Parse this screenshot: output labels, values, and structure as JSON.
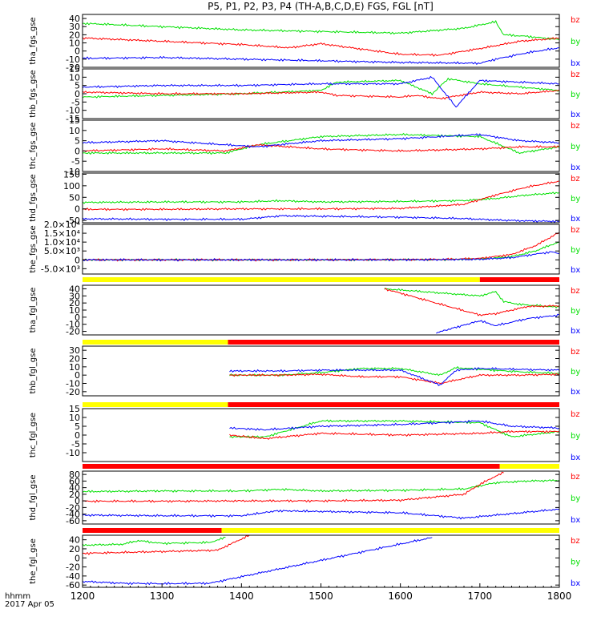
{
  "figure": {
    "title": "P5, P1, P2, P3, P4 (TH-A,B,C,D,E) FGS, FGL [nT]",
    "time_label": "hhmm",
    "date_label": "2017 Apr 05",
    "x_ticks": [
      "1200",
      "1300",
      "1400",
      "1500",
      "1600",
      "1700",
      "1800"
    ],
    "colors": {
      "bx": "#0000ff",
      "by": "#00e000",
      "bz": "#ff0000",
      "bar_yellow": "#ffff00",
      "bar_red": "#ff0000"
    }
  },
  "chart_data": [
    {
      "type": "line",
      "ylabel": "tha_fgs_gse",
      "ylim": [
        -20,
        45
      ],
      "y_ticks": [
        "40",
        "30",
        "20",
        "10",
        "0",
        "-10",
        "-20"
      ],
      "legend": [
        "bz",
        "by",
        "bx"
      ],
      "series": [
        {
          "name": "bz",
          "x": [
            1200,
            1300,
            1400,
            1460,
            1500,
            1600,
            1650,
            1700,
            1750,
            1800
          ],
          "values": [
            16,
            12,
            8,
            4,
            9,
            -4,
            -5,
            3,
            12,
            16
          ]
        },
        {
          "name": "by",
          "x": [
            1200,
            1300,
            1400,
            1500,
            1600,
            1680,
            1720,
            1730,
            1760,
            1800
          ],
          "values": [
            34,
            30,
            26,
            24,
            22,
            28,
            36,
            20,
            18,
            14
          ]
        },
        {
          "name": "bx",
          "x": [
            1200,
            1300,
            1400,
            1500,
            1600,
            1700,
            1720,
            1760,
            1800
          ],
          "values": [
            -9,
            -8,
            -10,
            -12,
            -14,
            -15,
            -10,
            -2,
            4
          ]
        }
      ]
    },
    {
      "type": "line",
      "ylabel": "thb_fgs_gse",
      "ylim": [
        -15,
        15
      ],
      "y_ticks": [
        "15",
        "10",
        "5",
        "0",
        "-5",
        "-10",
        "-15"
      ],
      "legend": [
        "bz",
        "by",
        "bx"
      ],
      "series": [
        {
          "name": "bz",
          "x": [
            1200,
            1300,
            1400,
            1500,
            1520,
            1600,
            1620,
            1650,
            1700,
            1750,
            1800
          ],
          "values": [
            1,
            0,
            0,
            1,
            -1,
            -2,
            -1,
            -3,
            1,
            0,
            2
          ]
        },
        {
          "name": "by",
          "x": [
            1200,
            1300,
            1400,
            1500,
            1520,
            1600,
            1640,
            1660,
            1700,
            1750,
            1800
          ],
          "values": [
            -2,
            -1,
            0,
            2,
            7,
            8,
            0,
            9,
            6,
            4,
            2
          ]
        },
        {
          "name": "bx",
          "x": [
            1200,
            1300,
            1400,
            1500,
            1600,
            1640,
            1670,
            1700,
            1750,
            1800
          ],
          "values": [
            4,
            5,
            5,
            6,
            6,
            10,
            -8,
            8,
            7,
            6
          ]
        }
      ]
    },
    {
      "type": "line",
      "ylabel": "thc_fgs_gse",
      "ylim": [
        -10,
        15
      ],
      "y_ticks": [
        "15",
        "10",
        "5",
        "0",
        "-5",
        "-10"
      ],
      "legend": [
        "bz",
        "by",
        "bx"
      ],
      "series": [
        {
          "name": "bz",
          "x": [
            1200,
            1300,
            1380,
            1420,
            1500,
            1600,
            1700,
            1750,
            1800
          ],
          "values": [
            0,
            1,
            0,
            3,
            1,
            0,
            1,
            2,
            2
          ]
        },
        {
          "name": "by",
          "x": [
            1200,
            1300,
            1380,
            1420,
            1500,
            1600,
            1700,
            1750,
            1800
          ],
          "values": [
            -1,
            -1,
            -1,
            3,
            7,
            8,
            7,
            -1,
            2
          ]
        },
        {
          "name": "bx",
          "x": [
            1200,
            1300,
            1380,
            1420,
            1500,
            1600,
            1700,
            1750,
            1800
          ],
          "values": [
            4,
            5,
            3,
            2,
            5,
            6,
            8,
            5,
            4
          ]
        }
      ]
    },
    {
      "type": "line",
      "ylabel": "thd_fgs_gse",
      "ylim": [
        -60,
        155
      ],
      "y_ticks": [
        "150",
        "100",
        "50",
        "0",
        "-50"
      ],
      "legend": [
        "bz",
        "by",
        "bx"
      ],
      "series": [
        {
          "name": "bz",
          "x": [
            1200,
            1300,
            1400,
            1500,
            1600,
            1680,
            1720,
            1760,
            1800
          ],
          "values": [
            -2,
            -2,
            0,
            0,
            2,
            20,
            60,
            95,
            120
          ]
        },
        {
          "name": "by",
          "x": [
            1200,
            1300,
            1400,
            1450,
            1500,
            1600,
            1680,
            1720,
            1760,
            1800
          ],
          "values": [
            28,
            30,
            30,
            35,
            30,
            32,
            36,
            45,
            60,
            70
          ]
        },
        {
          "name": "bx",
          "x": [
            1200,
            1300,
            1400,
            1450,
            1500,
            1600,
            1680,
            1720,
            1760,
            1800
          ],
          "values": [
            -43,
            -45,
            -45,
            -30,
            -32,
            -36,
            -42,
            -48,
            -52,
            -54
          ]
        }
      ]
    },
    {
      "type": "line",
      "ylabel": "the_fgs_gse",
      "ylim": [
        -8000,
        20000
      ],
      "y_ticks": [
        "2.0×10⁴",
        "1.5×10⁴",
        "1.0×10⁴",
        "5.0×10³",
        "0",
        "-5.0×10³"
      ],
      "legend": [
        "bz",
        "by",
        "bx"
      ],
      "series": [
        {
          "name": "bz",
          "x": [
            1200,
            1500,
            1650,
            1700,
            1740,
            1770,
            1790,
            1800
          ],
          "values": [
            0,
            0,
            200,
            800,
            3000,
            8000,
            13000,
            15500
          ]
        },
        {
          "name": "by",
          "x": [
            1200,
            1500,
            1650,
            1700,
            1740,
            1770,
            1790,
            1800
          ],
          "values": [
            0,
            0,
            100,
            500,
            1800,
            5000,
            8500,
            10000
          ]
        },
        {
          "name": "bx",
          "x": [
            1200,
            1500,
            1650,
            1700,
            1740,
            1770,
            1790,
            1800
          ],
          "values": [
            0,
            0,
            100,
            300,
            1200,
            3200,
            4500,
            3500
          ]
        }
      ]
    },
    {
      "type": "line",
      "ylabel": "tha_fgl_gse",
      "ylim": [
        -25,
        45
      ],
      "y_ticks": [
        "40",
        "30",
        "20",
        "10",
        "0",
        "-10",
        "-20"
      ],
      "legend": [
        "bz",
        "by",
        "bx"
      ],
      "mode_bar": [
        {
          "start": 1200,
          "end": 1700,
          "color": "yellow"
        },
        {
          "start": 1700,
          "end": 1800,
          "color": "red"
        }
      ],
      "series": [
        {
          "name": "bz",
          "x": [
            1580,
            1700,
            1720,
            1740,
            1760,
            1800
          ],
          "values": [
            40,
            3,
            5,
            10,
            15,
            16
          ]
        },
        {
          "name": "by",
          "x": [
            1580,
            1700,
            1720,
            1730,
            1750,
            1800
          ],
          "values": [
            40,
            30,
            36,
            22,
            18,
            14
          ]
        },
        {
          "name": "bx",
          "x": [
            1645,
            1700,
            1720,
            1760,
            1800
          ],
          "values": [
            -22,
            -5,
            -12,
            -2,
            3
          ]
        }
      ]
    },
    {
      "type": "line",
      "ylabel": "thb_fgl_gse",
      "ylim": [
        -25,
        35
      ],
      "y_ticks": [
        "30",
        "20",
        "10",
        "0",
        "-10",
        "-20"
      ],
      "legend": [
        "bz",
        "by",
        "bx"
      ],
      "mode_bar": [
        {
          "start": 1200,
          "end": 1383,
          "color": "yellow"
        },
        {
          "start": 1383,
          "end": 1800,
          "color": "red"
        }
      ],
      "series": [
        {
          "name": "bz",
          "x": [
            1385,
            1450,
            1500,
            1550,
            1600,
            1650,
            1700,
            1750,
            1800
          ],
          "values": [
            0,
            0,
            1,
            -2,
            -2,
            -10,
            0,
            0,
            1
          ]
        },
        {
          "name": "by",
          "x": [
            1385,
            1450,
            1500,
            1550,
            1600,
            1650,
            1670,
            1700,
            1750,
            1800
          ],
          "values": [
            0,
            0,
            3,
            8,
            8,
            0,
            9,
            7,
            4,
            2
          ]
        },
        {
          "name": "bx",
          "x": [
            1385,
            1450,
            1500,
            1550,
            1600,
            1650,
            1670,
            1700,
            1750,
            1800
          ],
          "values": [
            5,
            5,
            6,
            6,
            6,
            -12,
            6,
            8,
            7,
            6
          ]
        }
      ]
    },
    {
      "type": "line",
      "ylabel": "thc_fgl_gse",
      "ylim": [
        -15,
        15
      ],
      "y_ticks": [
        "15",
        "10",
        "5",
        "0",
        "-5",
        "-10"
      ],
      "legend": [
        "bz",
        "by",
        "bx"
      ],
      "mode_bar": [
        {
          "start": 1200,
          "end": 1383,
          "color": "yellow"
        },
        {
          "start": 1383,
          "end": 1800,
          "color": "red"
        }
      ],
      "series": [
        {
          "name": "bz",
          "x": [
            1385,
            1430,
            1500,
            1600,
            1700,
            1740,
            1800
          ],
          "values": [
            0,
            -2,
            1,
            0,
            1,
            2,
            2
          ]
        },
        {
          "name": "by",
          "x": [
            1385,
            1430,
            1500,
            1600,
            1700,
            1740,
            1800
          ],
          "values": [
            -1,
            -1,
            8,
            8,
            7,
            -1,
            2
          ]
        },
        {
          "name": "bx",
          "x": [
            1385,
            1430,
            1500,
            1600,
            1700,
            1740,
            1800
          ],
          "values": [
            4,
            3,
            5,
            6,
            8,
            5,
            4
          ]
        }
      ]
    },
    {
      "type": "line",
      "ylabel": "thd_fgl_gse",
      "ylim": [
        -70,
        90
      ],
      "y_ticks": [
        "80",
        "60",
        "40",
        "20",
        "0",
        "-20",
        "-40",
        "-60"
      ],
      "legend": [
        "bz",
        "by",
        "bx"
      ],
      "mode_bar": [
        {
          "start": 1200,
          "end": 1725,
          "color": "red"
        },
        {
          "start": 1725,
          "end": 1800,
          "color": "yellow"
        }
      ],
      "series": [
        {
          "name": "bz",
          "x": [
            1200,
            1300,
            1400,
            1500,
            1600,
            1680,
            1700,
            1720,
            1730
          ],
          "values": [
            -1,
            -1,
            0,
            0,
            2,
            20,
            50,
            75,
            85
          ]
        },
        {
          "name": "by",
          "x": [
            1200,
            1300,
            1400,
            1450,
            1500,
            1600,
            1680,
            1720,
            1760,
            1800
          ],
          "values": [
            28,
            30,
            30,
            35,
            30,
            32,
            36,
            55,
            60,
            62
          ]
        },
        {
          "name": "bx",
          "x": [
            1200,
            1300,
            1400,
            1445,
            1500,
            1600,
            1680,
            1800
          ],
          "values": [
            -43,
            -45,
            -45,
            -30,
            -32,
            -36,
            -52,
            -25
          ]
        }
      ]
    },
    {
      "type": "line",
      "ylabel": "the_fgl_gse",
      "ylim": [
        -65,
        50
      ],
      "y_ticks": [
        "40",
        "20",
        "0",
        "-20",
        "-40",
        "-60"
      ],
      "legend": [
        "bz",
        "by",
        "bx"
      ],
      "mode_bar": [
        {
          "start": 1200,
          "end": 1375,
          "color": "red"
        },
        {
          "start": 1375,
          "end": 1800,
          "color": "yellow"
        }
      ],
      "series": [
        {
          "name": "bz",
          "x": [
            1200,
            1250,
            1300,
            1370,
            1410
          ],
          "values": [
            10,
            12,
            14,
            17,
            50
          ]
        },
        {
          "name": "by",
          "x": [
            1200,
            1250,
            1270,
            1300,
            1360,
            1380
          ],
          "values": [
            28,
            30,
            38,
            32,
            34,
            45
          ]
        },
        {
          "name": "bx",
          "x": [
            1200,
            1250,
            1300,
            1360,
            1640
          ],
          "values": [
            -52,
            -56,
            -57,
            -56,
            45
          ]
        }
      ]
    }
  ]
}
